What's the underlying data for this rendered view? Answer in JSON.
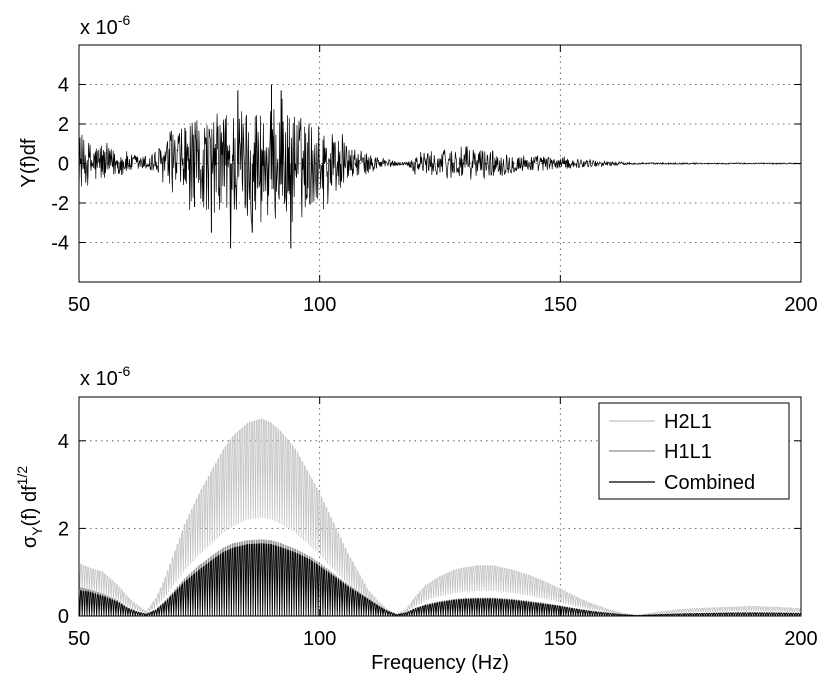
{
  "chart_data": [
    {
      "type": "line",
      "ylabel": "Y(f)df",
      "xlabel": "",
      "exponent_label": "x 10",
      "exponent_power": "-6",
      "xlim": [
        50,
        200
      ],
      "ylim": [
        -6,
        6
      ],
      "x_ticks": [
        50,
        100,
        150,
        200
      ],
      "x_tick_labels": [
        "50",
        "100",
        "150",
        "200"
      ],
      "y_ticks": [
        -4,
        -2,
        0,
        2,
        4
      ],
      "y_tick_labels": [
        "-4",
        "-2",
        "0",
        "2",
        "4"
      ],
      "grid": true,
      "series": [
        {
          "color": "#000000",
          "envelope": {
            "x": [
              50,
              55,
              60,
              64,
              66,
              70,
              75,
              80,
              85,
              88,
              90,
              95,
              100,
              104,
              106,
              110,
              113,
              116,
              118,
              120,
              125,
              130,
              135,
              140,
              145,
              150,
              155,
              160,
              165,
              170,
              175,
              180,
              190,
              200
            ],
            "amplitude": [
              1.3,
              0.9,
              0.5,
              0.35,
              0.7,
              1.6,
              2.3,
              2.7,
              3.0,
              3.1,
              2.9,
              2.5,
              2.0,
              1.5,
              0.8,
              0.5,
              0.3,
              0.1,
              0.08,
              0.5,
              0.7,
              0.9,
              0.7,
              0.5,
              0.4,
              0.3,
              0.2,
              0.12,
              0.05,
              0.04,
              0.04,
              0.03,
              0.03,
              0.03
            ]
          },
          "extreme_spikes": [
            {
              "x": 77.5,
              "y": -3.5
            },
            {
              "x": 81.5,
              "y": -4.3
            },
            {
              "x": 83,
              "y": 3.7
            },
            {
              "x": 86,
              "y": -3.5
            },
            {
              "x": 90,
              "y": 4.0
            },
            {
              "x": 94,
              "y": -4.3
            },
            {
              "x": 92,
              "y": 3.7
            },
            {
              "x": 72,
              "y": 1.8
            },
            {
              "x": 74,
              "y": -2.2
            }
          ]
        }
      ]
    },
    {
      "type": "line",
      "ylabel": "σ",
      "ylabel_sub": "Y",
      "ylabel_rest": "(f) df",
      "ylabel_sup": "1/2",
      "xlabel": "Frequency (Hz)",
      "exponent_label": "x 10",
      "exponent_power": "-6",
      "xlim": [
        50,
        200
      ],
      "ylim": [
        0,
        5
      ],
      "x_ticks": [
        50,
        100,
        150,
        200
      ],
      "x_tick_labels": [
        "50",
        "100",
        "150",
        "200"
      ],
      "y_ticks": [
        0,
        2,
        4
      ],
      "y_tick_labels": [
        "0",
        "2",
        "4"
      ],
      "grid": true,
      "legend": "top-right",
      "series": [
        {
          "name": "H2L1",
          "color": "#c2c2c2",
          "x": [
            50,
            52,
            55,
            58,
            60,
            62,
            64,
            66,
            68,
            70,
            72,
            75,
            78,
            80,
            82,
            85,
            88,
            90,
            92,
            95,
            98,
            100,
            103,
            106,
            108,
            110,
            112,
            114,
            116,
            118,
            120,
            122,
            125,
            128,
            130,
            133,
            136,
            140,
            143,
            146,
            150,
            153,
            156,
            160,
            163,
            166,
            170,
            175,
            180,
            185,
            190,
            195,
            200
          ],
          "y": [
            1.2,
            1.1,
            1.0,
            0.7,
            0.45,
            0.25,
            0.1,
            0.4,
            0.9,
            1.5,
            2.1,
            2.8,
            3.4,
            3.8,
            4.1,
            4.4,
            4.5,
            4.4,
            4.2,
            3.8,
            3.2,
            2.8,
            2.1,
            1.4,
            1.0,
            0.6,
            0.35,
            0.15,
            0.04,
            0.15,
            0.45,
            0.7,
            0.9,
            1.05,
            1.1,
            1.15,
            1.15,
            1.05,
            0.95,
            0.82,
            0.62,
            0.45,
            0.3,
            0.15,
            0.06,
            0.02,
            0.08,
            0.15,
            0.18,
            0.2,
            0.22,
            0.2,
            0.17
          ],
          "drop": 0.5
        },
        {
          "name": "H1L1",
          "color": "#8c8c8c",
          "x": [
            50,
            52,
            55,
            58,
            60,
            62,
            64,
            66,
            68,
            70,
            72,
            75,
            78,
            80,
            82,
            85,
            88,
            90,
            92,
            95,
            98,
            100,
            103,
            106,
            108,
            110,
            112,
            114,
            116,
            118,
            120,
            122,
            125,
            128,
            130,
            133,
            136,
            140,
            143,
            146,
            150,
            153,
            156,
            160,
            163,
            166,
            170,
            175,
            180,
            185,
            190,
            195,
            200
          ],
          "y": [
            0.65,
            0.6,
            0.5,
            0.35,
            0.2,
            0.1,
            0.05,
            0.15,
            0.35,
            0.6,
            0.85,
            1.15,
            1.4,
            1.55,
            1.65,
            1.72,
            1.74,
            1.72,
            1.65,
            1.52,
            1.35,
            1.2,
            0.95,
            0.7,
            0.55,
            0.4,
            0.25,
            0.12,
            0.03,
            0.08,
            0.18,
            0.26,
            0.33,
            0.38,
            0.4,
            0.41,
            0.41,
            0.38,
            0.34,
            0.3,
            0.23,
            0.17,
            0.12,
            0.07,
            0.03,
            0.01,
            0.03,
            0.05,
            0.06,
            0.07,
            0.08,
            0.07,
            0.06
          ],
          "drop": 0.15
        },
        {
          "name": "Combined",
          "color": "#000000",
          "x": [
            50,
            52,
            55,
            58,
            60,
            62,
            64,
            66,
            68,
            70,
            72,
            75,
            78,
            80,
            82,
            85,
            88,
            90,
            92,
            95,
            98,
            100,
            103,
            106,
            108,
            110,
            112,
            114,
            116,
            118,
            120,
            122,
            125,
            128,
            130,
            133,
            136,
            140,
            143,
            146,
            150,
            153,
            156,
            160,
            163,
            166,
            170,
            175,
            180,
            185,
            190,
            195,
            200
          ],
          "y": [
            0.58,
            0.55,
            0.45,
            0.32,
            0.18,
            0.09,
            0.04,
            0.13,
            0.32,
            0.55,
            0.78,
            1.05,
            1.3,
            1.45,
            1.55,
            1.63,
            1.65,
            1.63,
            1.56,
            1.44,
            1.28,
            1.13,
            0.9,
            0.66,
            0.52,
            0.38,
            0.24,
            0.11,
            0.03,
            0.07,
            0.17,
            0.24,
            0.31,
            0.36,
            0.38,
            0.39,
            0.39,
            0.36,
            0.32,
            0.28,
            0.22,
            0.16,
            0.11,
            0.06,
            0.03,
            0.01,
            0.03,
            0.05,
            0.06,
            0.07,
            0.07,
            0.07,
            0.06
          ],
          "drop": 0.0
        }
      ]
    }
  ]
}
